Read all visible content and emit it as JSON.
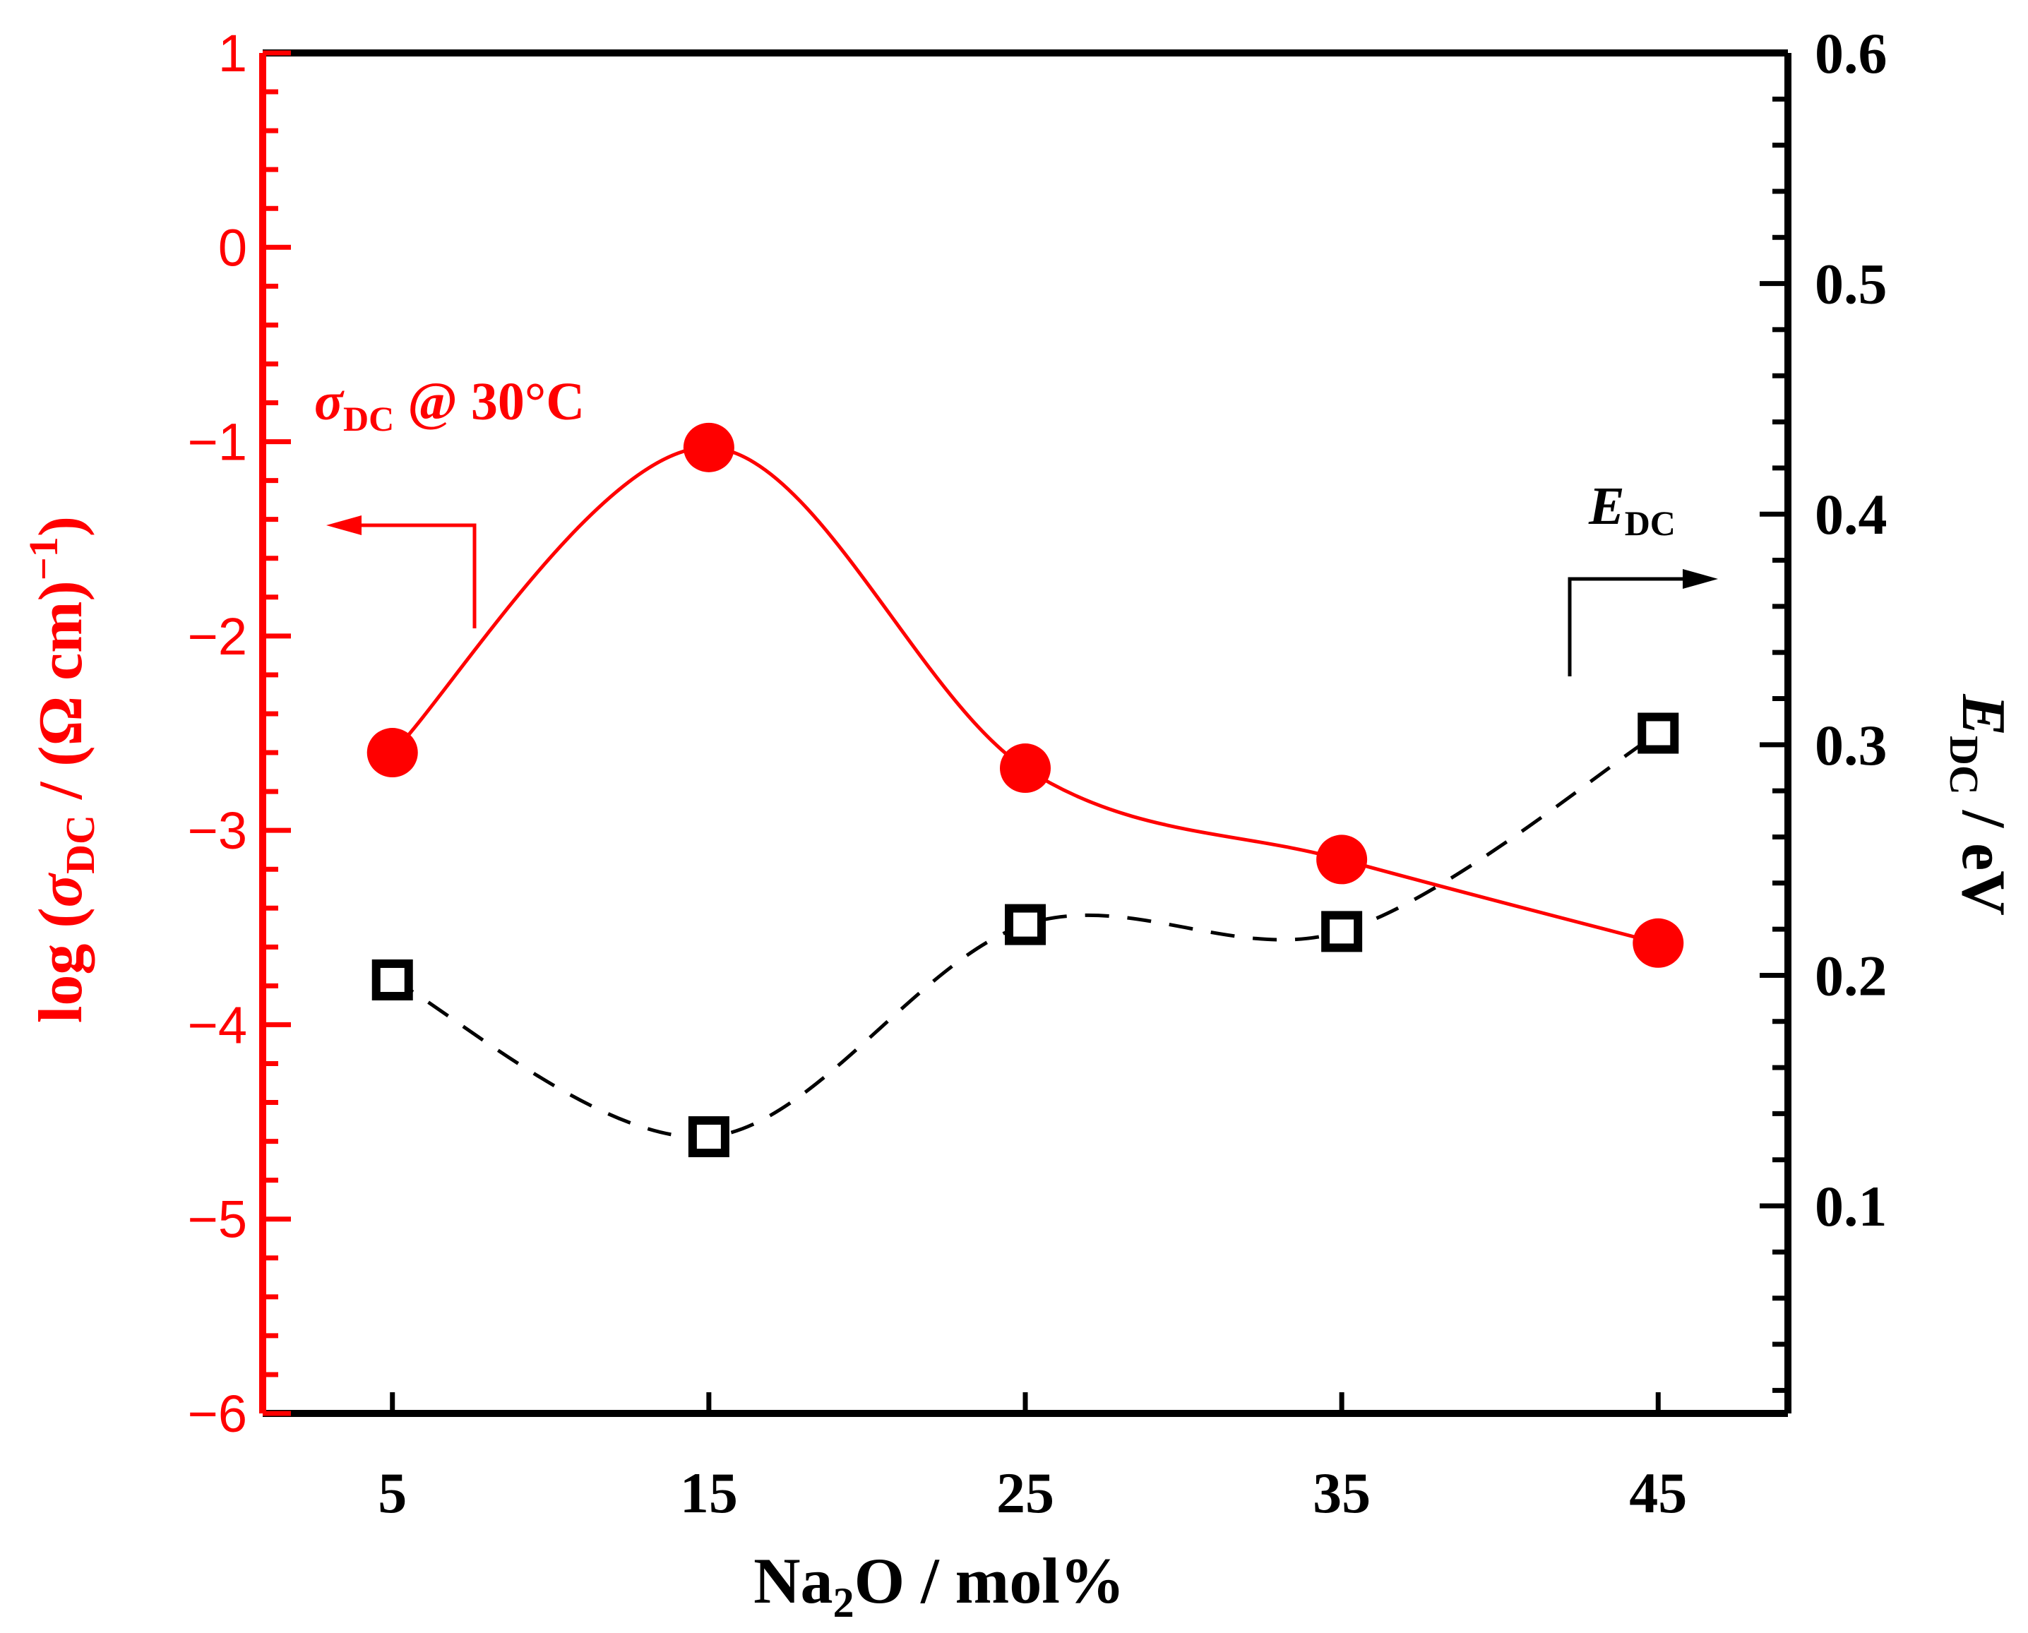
{
  "chart_data": {
    "type": "line",
    "x": [
      5,
      15,
      25,
      35,
      45
    ],
    "xlabel_parts": [
      "Na",
      "2",
      "O / mol%"
    ],
    "xlim": [
      0.9,
      49.1
    ],
    "x_ticks": [
      "5",
      "15",
      "25",
      "35",
      "45"
    ],
    "left_axis": {
      "label_parts": [
        "log (",
        "σ",
        "DC",
        " / (Ω cm)",
        "−1",
        ")"
      ],
      "ylim": [
        -6,
        1
      ],
      "ticks": [
        "1",
        "0",
        "−1",
        "−2",
        "−3",
        "−4",
        "−5",
        "−6"
      ],
      "color": "#ff0000"
    },
    "right_axis": {
      "label_parts": [
        "E",
        "DC",
        " / eV"
      ],
      "ylim": [
        0.01,
        0.6
      ],
      "ticks": [
        "0.6",
        "0.5",
        "0.4",
        "0.3",
        "0.2",
        "0.1"
      ],
      "color": "#000000"
    },
    "series": [
      {
        "name": "σDC @ 30°C",
        "axis": "left",
        "marker": "filled-circle",
        "line": "solid-smooth",
        "color": "#ff0000",
        "values": [
          -2.6,
          -1.03,
          -2.68,
          -3.15,
          -3.58
        ]
      },
      {
        "name": "EDC",
        "axis": "right",
        "marker": "open-square",
        "line": "dashed-smooth",
        "color": "#000000",
        "values": [
          0.198,
          0.13,
          0.222,
          0.219,
          0.305
        ]
      }
    ],
    "annotations": {
      "sigma": {
        "symbol": "σ",
        "sub": "DC",
        "rest": " @ 30°C",
        "arrow": "left"
      },
      "edc": {
        "symbol": "E",
        "sub": "DC",
        "arrow": "right"
      }
    }
  }
}
